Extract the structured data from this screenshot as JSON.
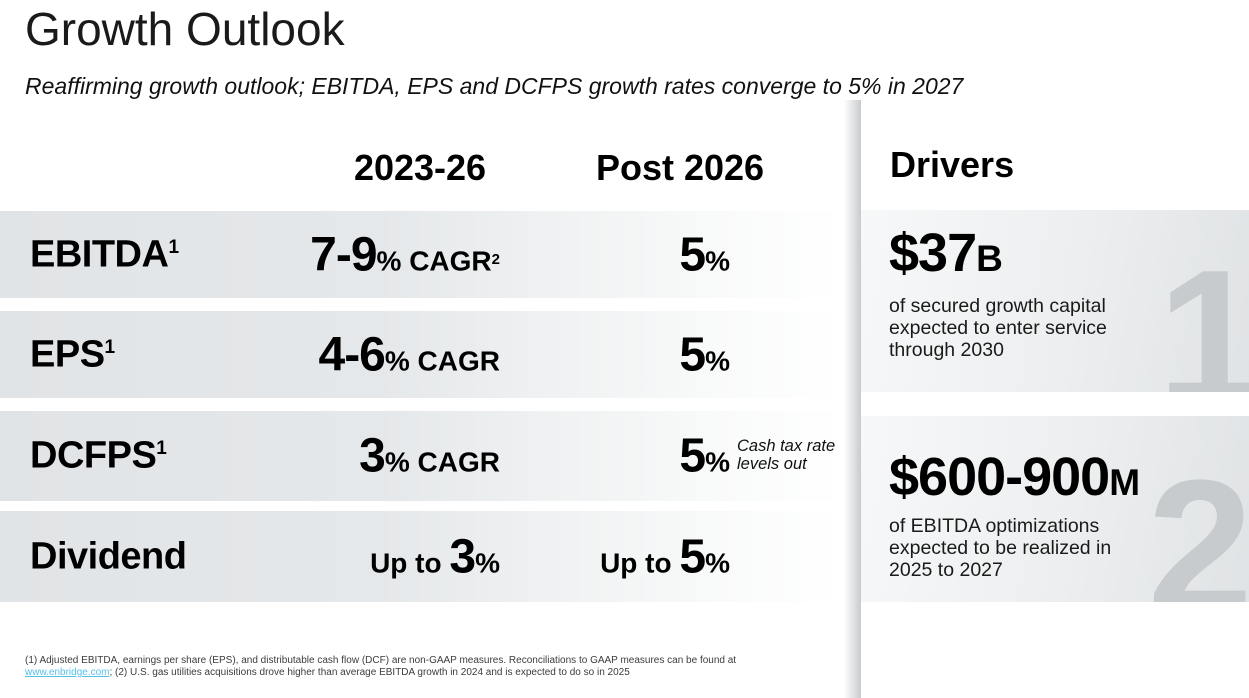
{
  "slide": {
    "title": "Growth Outlook",
    "subtitle": "Reaffirming growth outlook; EBITDA, EPS and DCFPS growth rates converge to 5% in 2027"
  },
  "table": {
    "col_headers": {
      "period1": "2023-26",
      "period2": "Post 2026"
    },
    "rows": [
      {
        "label": "EBITDA",
        "label_sup": "1",
        "c1_prefix": "",
        "c1_big": "7-9",
        "c1_unit": "% CAGR",
        "c1_sup": "2",
        "c2_prefix": "",
        "c2_big": "5",
        "c2_unit": "%"
      },
      {
        "label": "EPS",
        "label_sup": "1",
        "c1_prefix": "",
        "c1_big": "4-6",
        "c1_unit": "% CAGR",
        "c1_sup": "",
        "c2_prefix": "",
        "c2_big": "5",
        "c2_unit": "%"
      },
      {
        "label": "DCFPS",
        "label_sup": "1",
        "c1_prefix": "",
        "c1_big": "3",
        "c1_unit": "% CAGR",
        "c1_sup": "",
        "c2_prefix": "",
        "c2_big": "5",
        "c2_unit": "%",
        "note_line1": "Cash tax rate",
        "note_line2": "levels out"
      },
      {
        "label": "Dividend",
        "label_sup": "",
        "c1_prefix": "Up to ",
        "c1_big": "3",
        "c1_unit": "%",
        "c1_sup": "",
        "c2_prefix": "Up to ",
        "c2_big": "5",
        "c2_unit": "%"
      }
    ]
  },
  "drivers": {
    "heading": "Drivers",
    "items": [
      {
        "number": "1",
        "value": "$37",
        "value_unit": "B",
        "lines": [
          "of secured growth capital",
          "expected to enter service",
          "through 2030"
        ]
      },
      {
        "number": "2",
        "value": "$600-900",
        "value_unit": "M",
        "lines": [
          "of EBITDA optimizations",
          "expected to be realized in",
          "2025 to 2027"
        ]
      }
    ]
  },
  "footnote": {
    "part1": "(1) Adjusted EBITDA, earnings per share (EPS), and distributable cash flow (DCF) are non-GAAP measures. Reconciliations to GAAP measures can be found at",
    "link": "www.enbridge.com",
    "part2": "; (2) U.S. gas utilities acquisitions drove higher than average EBITDA growth in 2024 and is expected to do so in 2025"
  },
  "colors": {
    "row_gradient_start": "#e1e4e6",
    "card_gradient_end": "#e0e3e5",
    "watermark": "#c8cbce",
    "link": "#56c1e8",
    "footnote_text": "#3c3c3c"
  }
}
